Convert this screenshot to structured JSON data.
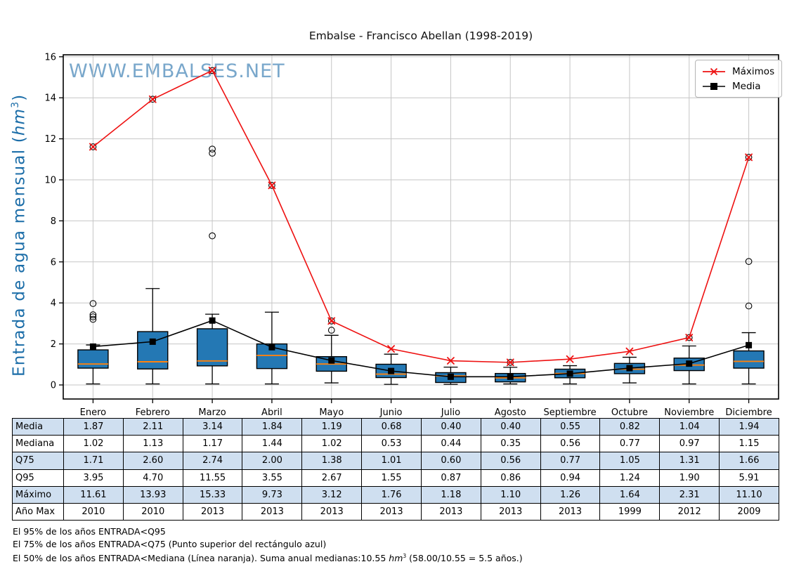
{
  "title": "Embalse - Francisco Abellan (1998-2019)",
  "watermark": "WWW.EMBALSES.NET",
  "ylabel": {
    "prefix": "Entrada de agua mensual (",
    "unit": "hm",
    "exp": "3",
    "suffix": ")"
  },
  "legend": {
    "items": [
      {
        "label": "Máximos"
      },
      {
        "label": "Media"
      }
    ]
  },
  "colors": {
    "box_fill": "#2478b4",
    "box_edge": "#000000",
    "median": "#ff820d",
    "max_line": "#ee1111",
    "mean_line": "#000000",
    "grid": "#c6c6c6",
    "frame": "#000000",
    "watermark": "#79a7cb",
    "ylabel": "#1b6da8",
    "table_shade": "#cfdff0"
  },
  "chart_data": {
    "type": "boxplot",
    "title": "Embalse - Francisco Abellan (1998-2019)",
    "xlabel": "",
    "ylabel": "Entrada de agua mensual (hm3)",
    "categories": [
      "Enero",
      "Febrero",
      "Marzo",
      "Abril",
      "Mayo",
      "Junio",
      "Julio",
      "Agosto",
      "Septiembre",
      "Octubre",
      "Noviembre",
      "Diciembre"
    ],
    "yticks": [
      0,
      2,
      4,
      6,
      8,
      10,
      12,
      14,
      16
    ],
    "ylim": [
      -0.65,
      16.1
    ],
    "grid": true,
    "legend_position": "upper right",
    "boxplot": {
      "q1": [
        0.82,
        0.78,
        0.93,
        0.8,
        0.67,
        0.36,
        0.12,
        0.15,
        0.35,
        0.55,
        0.7,
        0.82
      ],
      "median": [
        1.02,
        1.13,
        1.17,
        1.44,
        1.02,
        0.53,
        0.44,
        0.35,
        0.56,
        0.77,
        0.97,
        1.15
      ],
      "q3": [
        1.71,
        2.6,
        2.74,
        2.0,
        1.38,
        1.01,
        0.6,
        0.56,
        0.77,
        1.05,
        1.31,
        1.66
      ],
      "whisker_low": [
        0.05,
        0.05,
        0.05,
        0.05,
        0.1,
        0.03,
        0.03,
        0.05,
        0.05,
        0.1,
        0.05,
        0.05
      ],
      "whisker_high": [
        1.95,
        4.7,
        3.45,
        3.55,
        2.42,
        1.5,
        0.87,
        0.86,
        0.94,
        1.35,
        1.9,
        2.55
      ],
      "outliers": [
        [
          3.2,
          3.32,
          3.42,
          3.97,
          11.61
        ],
        [
          13.93
        ],
        [
          7.27,
          11.3,
          11.5,
          15.33
        ],
        [
          9.73
        ],
        [
          2.67,
          3.12
        ],
        [],
        [],
        [
          1.1
        ],
        [],
        [],
        [
          2.31
        ],
        [
          3.85,
          6.02,
          11.1
        ]
      ]
    },
    "series": [
      {
        "name": "Máximos",
        "marker": "x",
        "values": [
          11.61,
          13.93,
          15.33,
          9.73,
          3.12,
          1.76,
          1.18,
          1.1,
          1.26,
          1.64,
          2.31,
          11.1
        ]
      },
      {
        "name": "Media",
        "marker": "square",
        "values": [
          1.87,
          2.11,
          3.14,
          1.84,
          1.19,
          0.68,
          0.4,
          0.4,
          0.55,
          0.82,
          1.04,
          1.94
        ]
      }
    ]
  },
  "table": {
    "rows": [
      {
        "label": "Media",
        "values": [
          "1.87",
          "2.11",
          "3.14",
          "1.84",
          "1.19",
          "0.68",
          "0.40",
          "0.40",
          "0.55",
          "0.82",
          "1.04",
          "1.94"
        ]
      },
      {
        "label": "Mediana",
        "values": [
          "1.02",
          "1.13",
          "1.17",
          "1.44",
          "1.02",
          "0.53",
          "0.44",
          "0.35",
          "0.56",
          "0.77",
          "0.97",
          "1.15"
        ]
      },
      {
        "label": "Q75",
        "values": [
          "1.71",
          "2.60",
          "2.74",
          "2.00",
          "1.38",
          "1.01",
          "0.60",
          "0.56",
          "0.77",
          "1.05",
          "1.31",
          "1.66"
        ]
      },
      {
        "label": "Q95",
        "values": [
          "3.95",
          "4.70",
          "11.55",
          "3.55",
          "2.67",
          "1.55",
          "0.87",
          "0.86",
          "0.94",
          "1.24",
          "1.90",
          "5.91"
        ]
      },
      {
        "label": "Máximo",
        "values": [
          "11.61",
          "13.93",
          "15.33",
          "9.73",
          "3.12",
          "1.76",
          "1.18",
          "1.10",
          "1.26",
          "1.64",
          "2.31",
          "11.10"
        ]
      },
      {
        "label": "Año Max",
        "values": [
          "2010",
          "2010",
          "2013",
          "2013",
          "2013",
          "2013",
          "2013",
          "2013",
          "2013",
          "1999",
          "2012",
          "2009"
        ]
      }
    ]
  },
  "footnotes": {
    "line1": "El 95% de los años ENTRADA<Q95",
    "line2": "El 75% de los años ENTRADA<Q75 (Punto superior del rectángulo azul)",
    "line3_prefix": "El 50% de los años ENTRADA<Mediana (Línea naranja). Suma anual medianas:10.55 ",
    "line3_unit": "hm",
    "line3_exp": "3",
    "line3_suffix": " (58.00/10.55 = 5.5 años.)"
  }
}
